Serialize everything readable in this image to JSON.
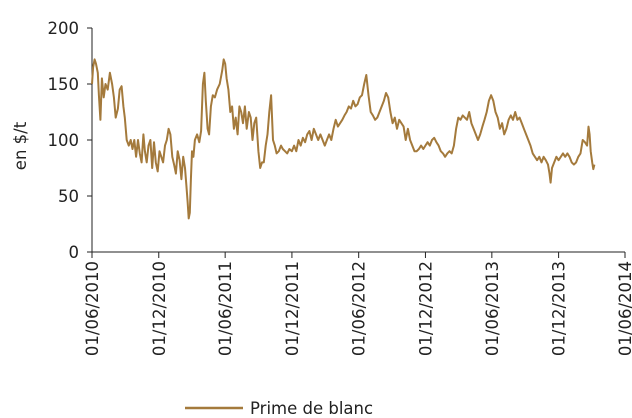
{
  "chart_data": {
    "type": "line",
    "title": "",
    "xlabel": "",
    "ylabel": "en $/t",
    "ylim": [
      0,
      200
    ],
    "xlim": [
      "2010-06-01",
      "2014-06-01"
    ],
    "y_ticks": [
      0,
      50,
      100,
      150,
      200
    ],
    "x_ticks": [
      "2010-06-01",
      "2010-12-01",
      "2011-06-01",
      "2011-12-01",
      "2012-06-01",
      "2012-12-01",
      "2013-06-01",
      "2013-12-01",
      "2014-06-01"
    ],
    "x_tick_labels": [
      "01/06/2010",
      "01/12/2010",
      "01/06/2011",
      "01/12/2011",
      "01/06/2012",
      "01/12/2012",
      "01/06/2013",
      "01/12/2013",
      "01/06/2014"
    ],
    "grid": false,
    "legend_position": "bottom",
    "series": [
      {
        "name": "Prime de blanc",
        "color": "#A47A3C",
        "points": [
          [
            "2010-06-01",
            150
          ],
          [
            "2010-06-04",
            165
          ],
          [
            "2010-06-08",
            172
          ],
          [
            "2010-06-12",
            168
          ],
          [
            "2010-06-17",
            160
          ],
          [
            "2010-06-20",
            140
          ],
          [
            "2010-06-24",
            118
          ],
          [
            "2010-06-28",
            155
          ],
          [
            "2010-07-03",
            138
          ],
          [
            "2010-07-08",
            150
          ],
          [
            "2010-07-14",
            145
          ],
          [
            "2010-07-20",
            160
          ],
          [
            "2010-07-26",
            150
          ],
          [
            "2010-07-31",
            138
          ],
          [
            "2010-08-05",
            120
          ],
          [
            "2010-08-11",
            128
          ],
          [
            "2010-08-16",
            145
          ],
          [
            "2010-08-21",
            148
          ],
          [
            "2010-08-26",
            130
          ],
          [
            "2010-08-30",
            120
          ],
          [
            "2010-09-04",
            100
          ],
          [
            "2010-09-10",
            95
          ],
          [
            "2010-09-15",
            100
          ],
          [
            "2010-09-20",
            92
          ],
          [
            "2010-09-25",
            100
          ],
          [
            "2010-09-30",
            85
          ],
          [
            "2010-10-05",
            100
          ],
          [
            "2010-10-10",
            88
          ],
          [
            "2010-10-15",
            80
          ],
          [
            "2010-10-20",
            105
          ],
          [
            "2010-10-24",
            90
          ],
          [
            "2010-10-29",
            80
          ],
          [
            "2010-11-03",
            95
          ],
          [
            "2010-11-08",
            100
          ],
          [
            "2010-11-13",
            75
          ],
          [
            "2010-11-18",
            98
          ],
          [
            "2010-11-23",
            80
          ],
          [
            "2010-11-28",
            72
          ],
          [
            "2010-12-03",
            90
          ],
          [
            "2010-12-08",
            85
          ],
          [
            "2010-12-13",
            80
          ],
          [
            "2010-12-18",
            95
          ],
          [
            "2010-12-23",
            100
          ],
          [
            "2010-12-28",
            110
          ],
          [
            "2011-01-02",
            105
          ],
          [
            "2011-01-07",
            85
          ],
          [
            "2011-01-12",
            78
          ],
          [
            "2011-01-17",
            70
          ],
          [
            "2011-01-22",
            90
          ],
          [
            "2011-01-27",
            82
          ],
          [
            "2011-02-01",
            65
          ],
          [
            "2011-02-06",
            85
          ],
          [
            "2011-02-11",
            75
          ],
          [
            "2011-02-15",
            58
          ],
          [
            "2011-02-18",
            45
          ],
          [
            "2011-02-21",
            30
          ],
          [
            "2011-02-24",
            35
          ],
          [
            "2011-02-27",
            65
          ],
          [
            "2011-03-02",
            90
          ],
          [
            "2011-03-06",
            85
          ],
          [
            "2011-03-10",
            100
          ],
          [
            "2011-03-16",
            105
          ],
          [
            "2011-03-22",
            98
          ],
          [
            "2011-03-27",
            108
          ],
          [
            "2011-04-01",
            150
          ],
          [
            "2011-04-05",
            160
          ],
          [
            "2011-04-09",
            135
          ],
          [
            "2011-04-14",
            110
          ],
          [
            "2011-04-18",
            105
          ],
          [
            "2011-04-23",
            130
          ],
          [
            "2011-04-28",
            140
          ],
          [
            "2011-05-04",
            138
          ],
          [
            "2011-05-10",
            145
          ],
          [
            "2011-05-17",
            150
          ],
          [
            "2011-05-24",
            162
          ],
          [
            "2011-05-28",
            172
          ],
          [
            "2011-06-01",
            168
          ],
          [
            "2011-06-05",
            155
          ],
          [
            "2011-06-10",
            145
          ],
          [
            "2011-06-15",
            125
          ],
          [
            "2011-06-20",
            130
          ],
          [
            "2011-06-25",
            110
          ],
          [
            "2011-06-30",
            120
          ],
          [
            "2011-07-05",
            105
          ],
          [
            "2011-07-10",
            130
          ],
          [
            "2011-07-15",
            125
          ],
          [
            "2011-07-20",
            115
          ],
          [
            "2011-07-25",
            130
          ],
          [
            "2011-07-30",
            110
          ],
          [
            "2011-08-05",
            125
          ],
          [
            "2011-08-10",
            120
          ],
          [
            "2011-08-15",
            100
          ],
          [
            "2011-08-20",
            115
          ],
          [
            "2011-08-25",
            120
          ],
          [
            "2011-08-31",
            90
          ],
          [
            "2011-09-05",
            75
          ],
          [
            "2011-09-10",
            80
          ],
          [
            "2011-09-15",
            80
          ],
          [
            "2011-09-20",
            95
          ],
          [
            "2011-09-25",
            105
          ],
          [
            "2011-09-30",
            125
          ],
          [
            "2011-10-05",
            140
          ],
          [
            "2011-10-10",
            100
          ],
          [
            "2011-10-15",
            95
          ],
          [
            "2011-10-20",
            88
          ],
          [
            "2011-10-26",
            90
          ],
          [
            "2011-11-01",
            95
          ],
          [
            "2011-11-06",
            92
          ],
          [
            "2011-11-12",
            90
          ],
          [
            "2011-11-18",
            88
          ],
          [
            "2011-11-24",
            92
          ],
          [
            "2011-12-01",
            90
          ],
          [
            "2011-12-07",
            95
          ],
          [
            "2011-12-13",
            90
          ],
          [
            "2011-12-19",
            100
          ],
          [
            "2011-12-25",
            95
          ],
          [
            "2011-12-31",
            102
          ],
          [
            "2012-01-06",
            98
          ],
          [
            "2012-01-12",
            105
          ],
          [
            "2012-01-18",
            108
          ],
          [
            "2012-01-24",
            100
          ],
          [
            "2012-01-30",
            110
          ],
          [
            "2012-02-05",
            105
          ],
          [
            "2012-02-11",
            100
          ],
          [
            "2012-02-17",
            105
          ],
          [
            "2012-02-23",
            100
          ],
          [
            "2012-02-29",
            95
          ],
          [
            "2012-03-06",
            100
          ],
          [
            "2012-03-12",
            105
          ],
          [
            "2012-03-18",
            100
          ],
          [
            "2012-03-24",
            110
          ],
          [
            "2012-03-30",
            118
          ],
          [
            "2012-04-05",
            112
          ],
          [
            "2012-04-11",
            115
          ],
          [
            "2012-04-17",
            118
          ],
          [
            "2012-04-23",
            122
          ],
          [
            "2012-04-29",
            125
          ],
          [
            "2012-05-05",
            130
          ],
          [
            "2012-05-11",
            128
          ],
          [
            "2012-05-17",
            135
          ],
          [
            "2012-05-23",
            130
          ],
          [
            "2012-05-29",
            132
          ],
          [
            "2012-06-04",
            138
          ],
          [
            "2012-06-10",
            140
          ],
          [
            "2012-06-16",
            150
          ],
          [
            "2012-06-22",
            158
          ],
          [
            "2012-06-28",
            140
          ],
          [
            "2012-07-04",
            125
          ],
          [
            "2012-07-10",
            122
          ],
          [
            "2012-07-16",
            118
          ],
          [
            "2012-07-22",
            120
          ],
          [
            "2012-07-28",
            125
          ],
          [
            "2012-08-03",
            130
          ],
          [
            "2012-08-09",
            135
          ],
          [
            "2012-08-15",
            142
          ],
          [
            "2012-08-21",
            138
          ],
          [
            "2012-08-27",
            125
          ],
          [
            "2012-09-02",
            115
          ],
          [
            "2012-09-08",
            120
          ],
          [
            "2012-09-14",
            110
          ],
          [
            "2012-09-20",
            118
          ],
          [
            "2012-09-26",
            115
          ],
          [
            "2012-10-02",
            112
          ],
          [
            "2012-10-08",
            100
          ],
          [
            "2012-10-14",
            110
          ],
          [
            "2012-10-20",
            100
          ],
          [
            "2012-10-26",
            95
          ],
          [
            "2012-11-01",
            90
          ],
          [
            "2012-11-07",
            90
          ],
          [
            "2012-11-13",
            92
          ],
          [
            "2012-11-19",
            95
          ],
          [
            "2012-11-25",
            92
          ],
          [
            "2012-12-01",
            95
          ],
          [
            "2012-12-07",
            98
          ],
          [
            "2012-12-13",
            95
          ],
          [
            "2012-12-19",
            100
          ],
          [
            "2012-12-25",
            102
          ],
          [
            "2012-12-31",
            98
          ],
          [
            "2013-01-06",
            95
          ],
          [
            "2013-01-12",
            90
          ],
          [
            "2013-01-18",
            88
          ],
          [
            "2013-01-24",
            85
          ],
          [
            "2013-01-30",
            88
          ],
          [
            "2013-02-05",
            90
          ],
          [
            "2013-02-11",
            88
          ],
          [
            "2013-02-17",
            95
          ],
          [
            "2013-02-23",
            110
          ],
          [
            "2013-03-01",
            120
          ],
          [
            "2013-03-07",
            118
          ],
          [
            "2013-03-13",
            122
          ],
          [
            "2013-03-19",
            120
          ],
          [
            "2013-03-25",
            118
          ],
          [
            "2013-03-31",
            125
          ],
          [
            "2013-04-06",
            115
          ],
          [
            "2013-04-12",
            110
          ],
          [
            "2013-04-18",
            105
          ],
          [
            "2013-04-24",
            100
          ],
          [
            "2013-04-30",
            105
          ],
          [
            "2013-05-06",
            112
          ],
          [
            "2013-05-12",
            118
          ],
          [
            "2013-05-18",
            125
          ],
          [
            "2013-05-24",
            135
          ],
          [
            "2013-05-30",
            140
          ],
          [
            "2013-06-05",
            135
          ],
          [
            "2013-06-11",
            125
          ],
          [
            "2013-06-17",
            120
          ],
          [
            "2013-06-23",
            110
          ],
          [
            "2013-06-29",
            115
          ],
          [
            "2013-07-05",
            105
          ],
          [
            "2013-07-11",
            110
          ],
          [
            "2013-07-17",
            118
          ],
          [
            "2013-07-23",
            122
          ],
          [
            "2013-07-29",
            118
          ],
          [
            "2013-08-04",
            125
          ],
          [
            "2013-08-10",
            118
          ],
          [
            "2013-08-16",
            120
          ],
          [
            "2013-08-22",
            115
          ],
          [
            "2013-08-28",
            110
          ],
          [
            "2013-09-03",
            105
          ],
          [
            "2013-09-09",
            100
          ],
          [
            "2013-09-15",
            95
          ],
          [
            "2013-09-21",
            88
          ],
          [
            "2013-09-27",
            85
          ],
          [
            "2013-10-03",
            82
          ],
          [
            "2013-10-09",
            85
          ],
          [
            "2013-10-15",
            80
          ],
          [
            "2013-10-21",
            85
          ],
          [
            "2013-10-27",
            82
          ],
          [
            "2013-11-02",
            78
          ],
          [
            "2013-11-06",
            70
          ],
          [
            "2013-11-09",
            62
          ],
          [
            "2013-11-13",
            75
          ],
          [
            "2013-11-19",
            80
          ],
          [
            "2013-11-25",
            85
          ],
          [
            "2013-12-01",
            82
          ],
          [
            "2013-12-07",
            85
          ],
          [
            "2013-12-13",
            88
          ],
          [
            "2013-12-19",
            85
          ],
          [
            "2013-12-25",
            88
          ],
          [
            "2013-12-31",
            85
          ],
          [
            "2014-01-06",
            80
          ],
          [
            "2014-01-12",
            78
          ],
          [
            "2014-01-18",
            80
          ],
          [
            "2014-01-24",
            85
          ],
          [
            "2014-01-30",
            88
          ],
          [
            "2014-02-05",
            100
          ],
          [
            "2014-02-11",
            98
          ],
          [
            "2014-02-17",
            95
          ],
          [
            "2014-02-21",
            112
          ],
          [
            "2014-02-24",
            105
          ],
          [
            "2014-02-27",
            90
          ],
          [
            "2014-03-03",
            80
          ],
          [
            "2014-03-06",
            74
          ],
          [
            "2014-03-09",
            78
          ]
        ]
      }
    ]
  }
}
